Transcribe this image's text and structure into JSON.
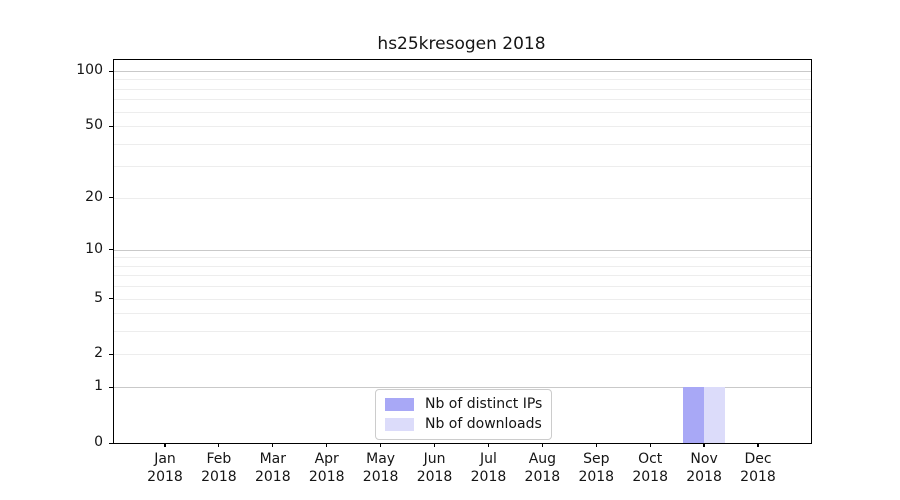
{
  "figure": {
    "title": "hs25kresogen 2018"
  },
  "chart_data": {
    "type": "bar",
    "title": "hs25kresogen 2018",
    "categories": [
      "Jan",
      "Feb",
      "Mar",
      "Apr",
      "May",
      "Jun",
      "Jul",
      "Aug",
      "Sep",
      "Oct",
      "Nov",
      "Dec"
    ],
    "year_label": "2018",
    "series": [
      {
        "name": "Nb of distinct IPs",
        "color": "#a8a8f6",
        "values": [
          0,
          0,
          0,
          0,
          0,
          0,
          0,
          0,
          0,
          0,
          1,
          0
        ]
      },
      {
        "name": "Nb of downloads",
        "color": "#dcdcfa",
        "values": [
          0,
          0,
          0,
          0,
          0,
          0,
          0,
          0,
          0,
          0,
          1,
          0
        ]
      }
    ],
    "yscale": "log1p",
    "ylim": [
      0,
      115
    ],
    "yticks": [
      0,
      1,
      2,
      5,
      10,
      20,
      50,
      100
    ],
    "major_gridlines": [
      1,
      10,
      100
    ],
    "minor_gridlines": [
      2,
      3,
      4,
      5,
      6,
      7,
      8,
      9,
      20,
      30,
      40,
      50,
      60,
      70,
      80,
      90
    ],
    "grid_color_major": "#c9c9c9",
    "grid_color_minor": "#ededed",
    "axis_color": "#000000",
    "tick_label_color": "#151515",
    "legend_position": "lower center",
    "grid": "on"
  }
}
